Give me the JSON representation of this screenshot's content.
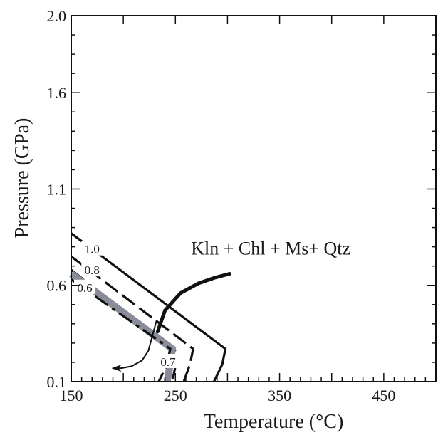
{
  "chart_data": {
    "type": "line",
    "title": "",
    "xlabel": "Temperature (°C)",
    "ylabel": "Pressure (GPa)",
    "xlim": [
      150,
      500
    ],
    "ylim": [
      0.1,
      2.0
    ],
    "x_ticks": [
      150,
      250,
      350,
      450
    ],
    "x_tick_labels": [
      "150",
      "250",
      "350",
      "450"
    ],
    "y_ticks": [
      0.1,
      0.6,
      1.1,
      1.6,
      2.0
    ],
    "y_tick_labels": [
      "0.1",
      "0.6",
      "1.1",
      "1.6",
      "2.0"
    ],
    "grid": false,
    "annotations": [
      {
        "text": "Kln + Chl + Ms+ Qtz",
        "x": 265,
        "y": 0.76
      }
    ],
    "reaction_curve": {
      "x": [
        233,
        240,
        255,
        272,
        288,
        302
      ],
      "y": [
        0.36,
        0.47,
        0.56,
        0.61,
        0.64,
        0.66
      ]
    },
    "arrow": {
      "x": [
        232,
        228,
        224,
        218,
        208,
        198,
        190
      ],
      "y": [
        0.42,
        0.34,
        0.26,
        0.21,
        0.18,
        0.17,
        0.17
      ]
    },
    "series": [
      {
        "name": "1.0",
        "style": "solid",
        "color": "#111111",
        "width": 3.2,
        "x": [
          150,
          298,
          295,
          287
        ],
        "y": [
          0.87,
          0.27,
          0.19,
          0.1
        ],
        "label_x": 170,
        "label_y": 0.785
      },
      {
        "name": "0.8",
        "style": "dashed",
        "color": "#111111",
        "width": 3.2,
        "x": [
          150,
          267,
          264,
          258
        ],
        "y": [
          0.75,
          0.27,
          0.19,
          0.1
        ],
        "label_x": 170,
        "label_y": 0.676
      },
      {
        "name": "0.6",
        "style": "dashdot",
        "color": "#111111",
        "width": 3.2,
        "x": [
          150,
          252,
          250,
          247
        ],
        "y": [
          0.68,
          0.25,
          0.18,
          0.1
        ],
        "label_x": 163,
        "label_y": 0.585
      },
      {
        "name": "0.7",
        "style": "thick",
        "color": "#8a8d99",
        "width": 10,
        "x": [
          150,
          247,
          245,
          242
        ],
        "y": [
          0.66,
          0.27,
          0.19,
          0.1
        ],
        "label_x": 243,
        "label_y": 0.2
      },
      {
        "name": "",
        "style": "dashdot",
        "color": "#111111",
        "width": 3.2,
        "x": [
          150,
          245,
          242,
          234
        ],
        "y": [
          0.63,
          0.27,
          0.19,
          0.1
        ]
      }
    ]
  }
}
